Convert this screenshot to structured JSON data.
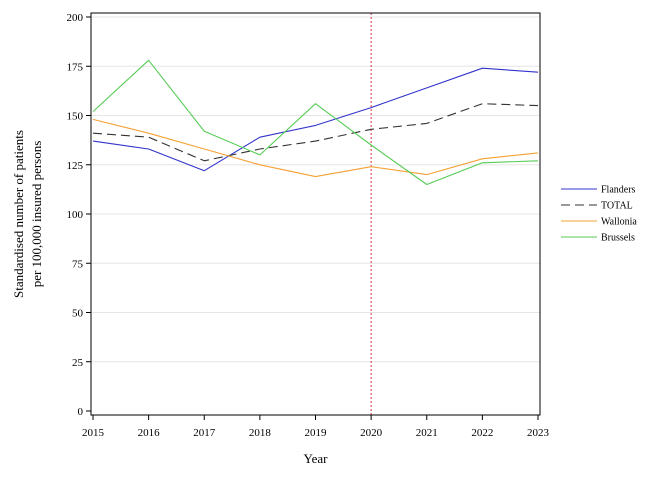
{
  "chart_data": {
    "type": "line",
    "title": "",
    "xlabel": "Year",
    "ylabel_lines": [
      "Standardised number of patients",
      "per 100,000 insured persons"
    ],
    "x": [
      2015,
      2016,
      2017,
      2018,
      2019,
      2020,
      2021,
      2022,
      2023
    ],
    "xlim": [
      2015,
      2023
    ],
    "ylim": [
      0,
      200
    ],
    "yticks": [
      0,
      25,
      50,
      75,
      100,
      125,
      150,
      175,
      200
    ],
    "grid": "horizontal",
    "reference_line_x": 2020,
    "legend_position": "right",
    "series": [
      {
        "name": "Flanders",
        "color": "#3333cc",
        "dash": "solid",
        "values": [
          137,
          133,
          122,
          139,
          145,
          154,
          164,
          174,
          172
        ]
      },
      {
        "name": "TOTAL",
        "color": "#333333",
        "dash": "dashed",
        "values": [
          141,
          139,
          127,
          133,
          137,
          143,
          146,
          156,
          155
        ]
      },
      {
        "name": "Wallonia",
        "color": "#f5a033",
        "dash": "solid",
        "values": [
          148,
          141,
          133,
          125,
          119,
          124,
          120,
          128,
          131
        ]
      },
      {
        "name": "Brussels",
        "color": "#55cc55",
        "dash": "solid",
        "values": [
          152,
          178,
          142,
          130,
          156,
          135,
          115,
          126,
          127
        ]
      }
    ],
    "reference_line_color": "#cc3344"
  }
}
